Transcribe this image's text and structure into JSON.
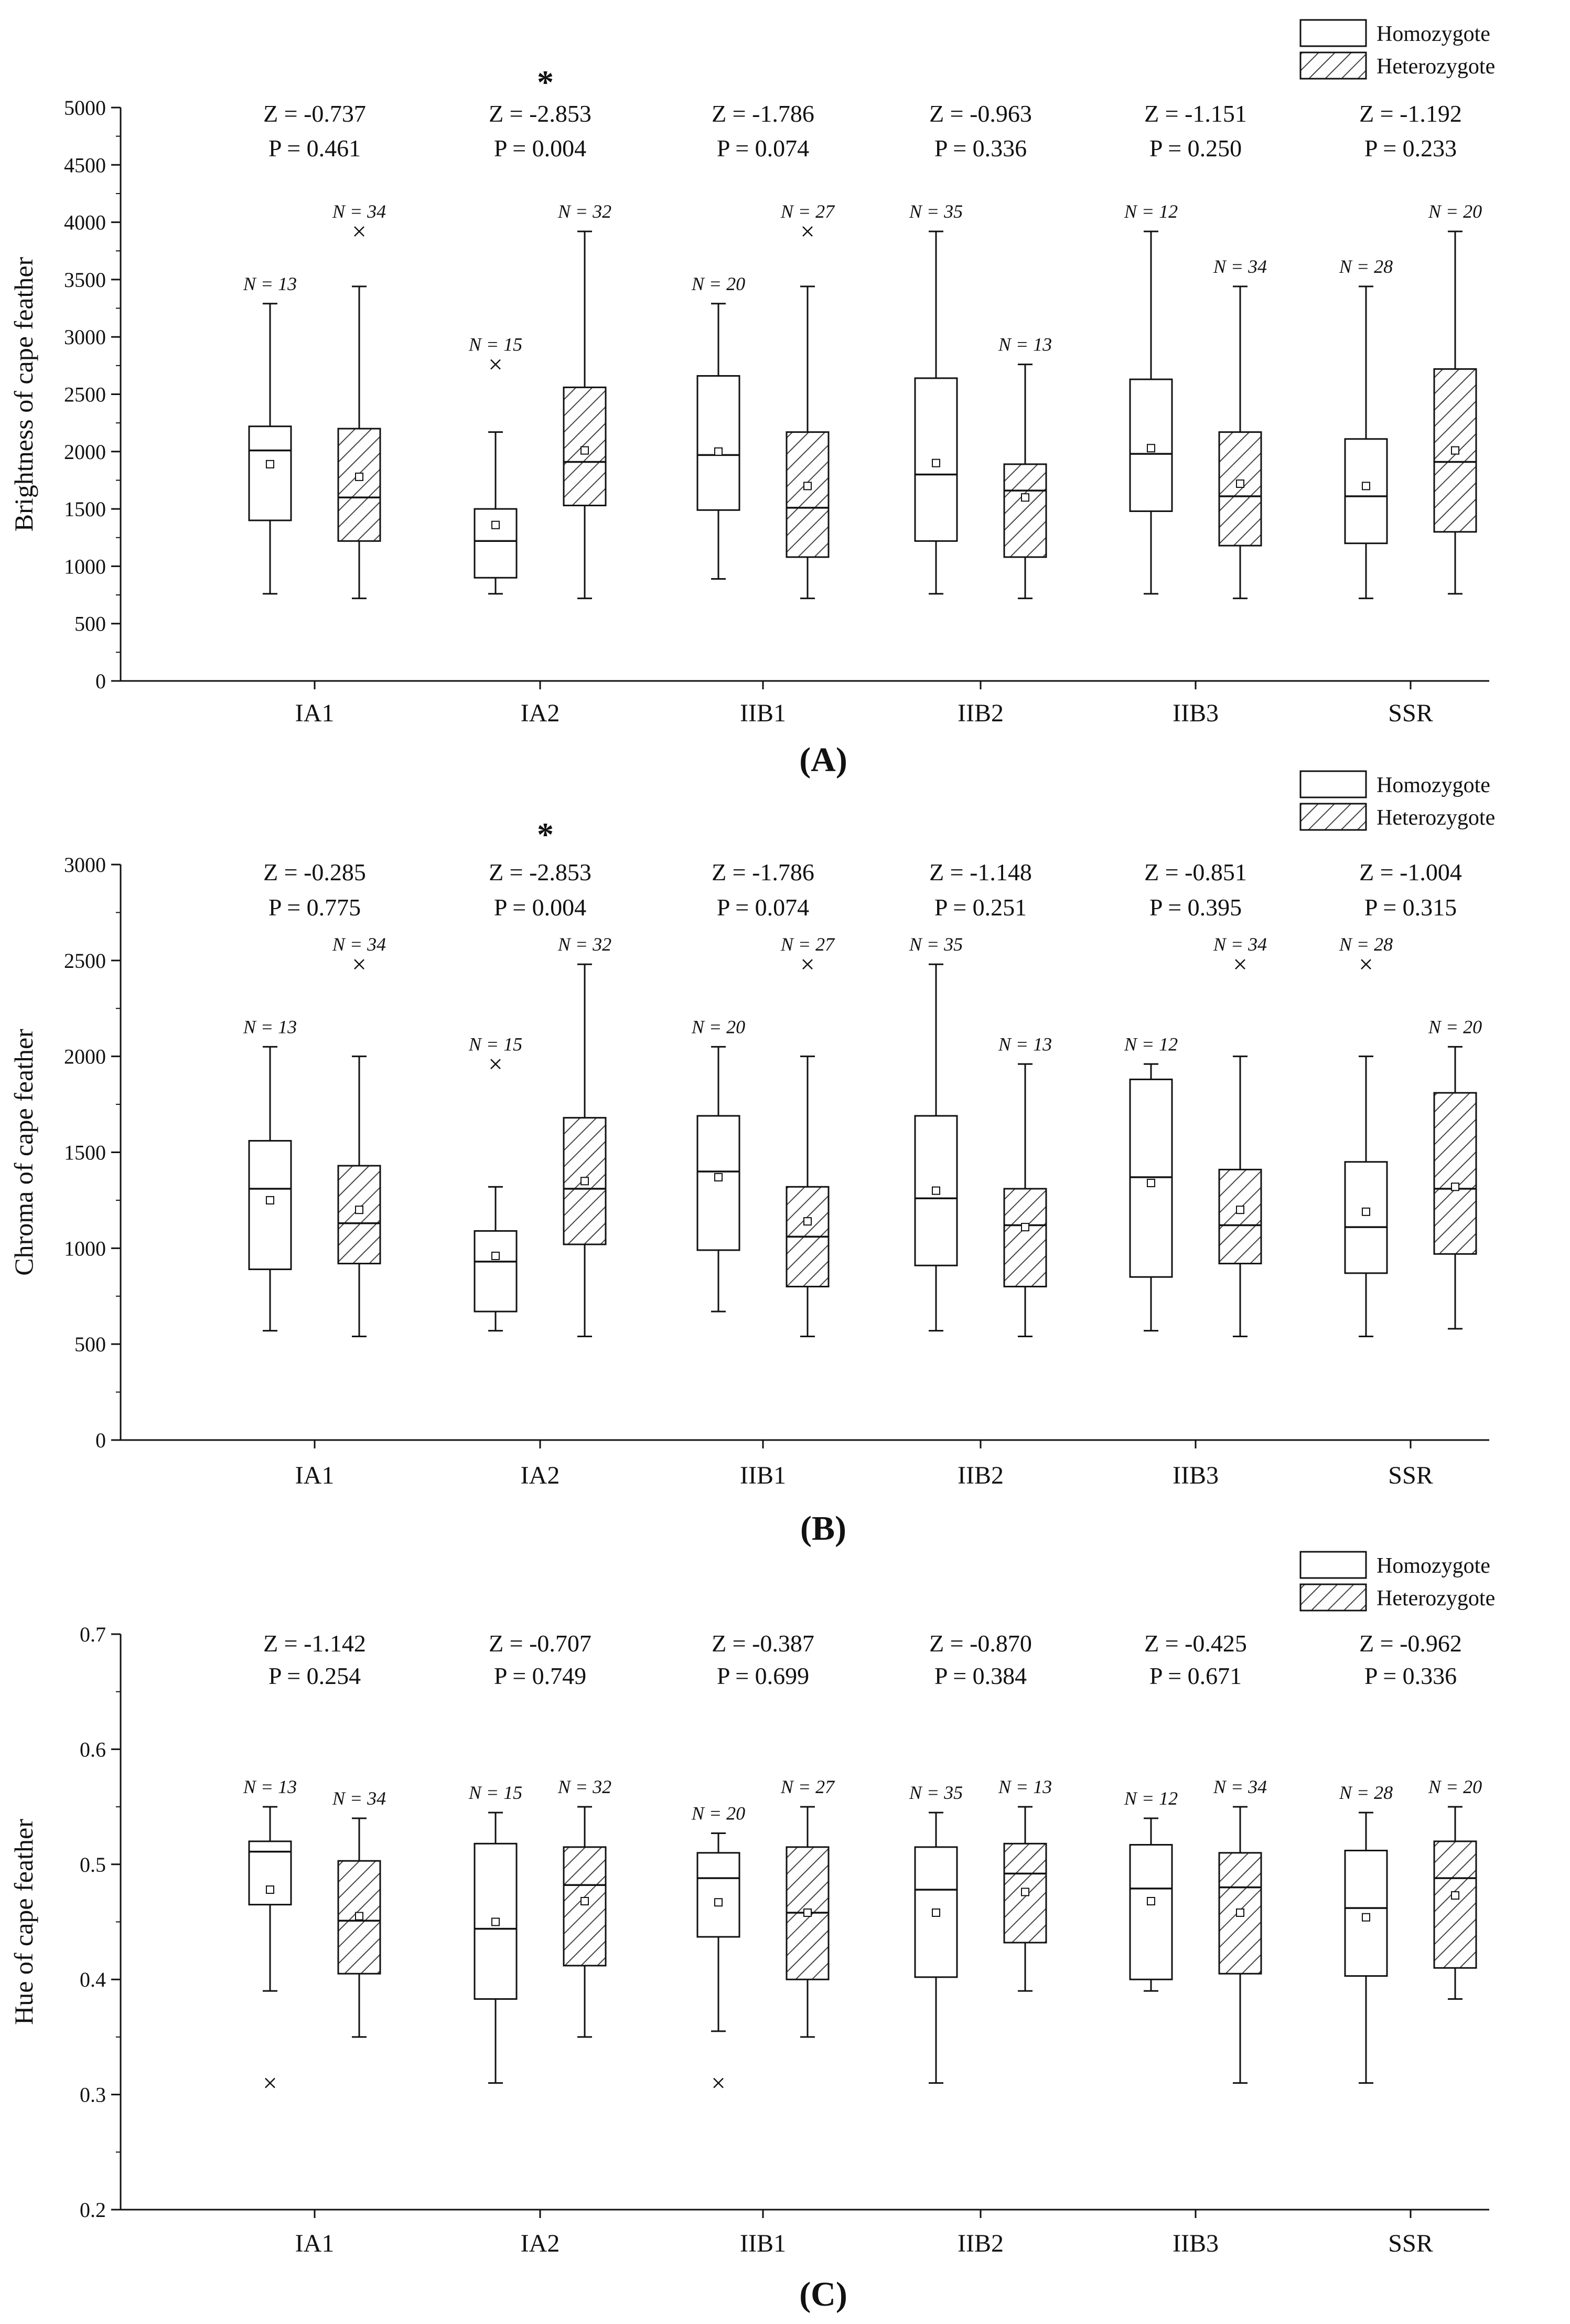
{
  "legend": {
    "homozygote": "Homozygote",
    "heterozygote": "Heterozygote"
  },
  "significance_marker": "*",
  "colors": {
    "ink": "#111111",
    "box_fill": "#ffffff",
    "hatch": "#444444"
  },
  "chart_data": [
    {
      "type": "box",
      "panel_label": "(A)",
      "ylabel": "Brightness of cape feather",
      "ylim": [
        0,
        5000
      ],
      "yticks": [
        "0",
        "500",
        "1000",
        "1500",
        "2000",
        "2500",
        "3000",
        "3500",
        "4000",
        "4500",
        "5000"
      ],
      "categories": [
        "IA1",
        "IA2",
        "IIB1",
        "IIB2",
        "IIB3",
        "SSR"
      ],
      "stats": [
        {
          "z": "Z = -0.737",
          "p": "P = 0.461",
          "significant": false
        },
        {
          "z": "Z = -2.853",
          "p": "P = 0.004",
          "significant": true
        },
        {
          "z": "Z = -1.786",
          "p": "P = 0.074",
          "significant": false
        },
        {
          "z": "Z = -0.963",
          "p": "P = 0.336",
          "significant": false
        },
        {
          "z": "Z = -1.151",
          "p": "P = 0.250",
          "significant": false
        },
        {
          "z": "Z = -1.192",
          "p": "P = 0.233",
          "significant": false
        }
      ],
      "series": [
        {
          "name": "Homozygote",
          "boxes": [
            {
              "n": "N = 13",
              "min": 760,
              "q1": 1400,
              "median": 2010,
              "q3": 2220,
              "max": 3290,
              "mean": 1890,
              "outliers": []
            },
            {
              "n": "N = 15",
              "min": 760,
              "q1": 900,
              "median": 1220,
              "q3": 1500,
              "max": 2170,
              "mean": 1360,
              "outliers": [
                2760
              ]
            },
            {
              "n": "N = 20",
              "min": 890,
              "q1": 1490,
              "median": 1970,
              "q3": 2660,
              "max": 3290,
              "mean": 2000,
              "outliers": []
            },
            {
              "n": "N = 35",
              "min": 760,
              "q1": 1220,
              "median": 1800,
              "q3": 2640,
              "max": 3920,
              "mean": 1900,
              "outliers": []
            },
            {
              "n": "N = 12",
              "min": 760,
              "q1": 1480,
              "median": 1980,
              "q3": 2630,
              "max": 3920,
              "mean": 2030,
              "outliers": []
            },
            {
              "n": "N = 28",
              "min": 720,
              "q1": 1200,
              "median": 1610,
              "q3": 2110,
              "max": 3440,
              "mean": 1700,
              "outliers": []
            }
          ]
        },
        {
          "name": "Heterozygote",
          "boxes": [
            {
              "n": "N = 34",
              "min": 720,
              "q1": 1220,
              "median": 1600,
              "q3": 2200,
              "max": 3440,
              "mean": 1780,
              "outliers": [
                3920
              ]
            },
            {
              "n": "N = 32",
              "min": 720,
              "q1": 1530,
              "median": 1910,
              "q3": 2560,
              "max": 3920,
              "mean": 2010,
              "outliers": []
            },
            {
              "n": "N = 27",
              "min": 720,
              "q1": 1080,
              "median": 1510,
              "q3": 2170,
              "max": 3440,
              "mean": 1700,
              "outliers": [
                3920
              ]
            },
            {
              "n": "N = 13",
              "min": 720,
              "q1": 1080,
              "median": 1660,
              "q3": 1890,
              "max": 2760,
              "mean": 1600,
              "outliers": []
            },
            {
              "n": "N = 34",
              "min": 720,
              "q1": 1180,
              "median": 1610,
              "q3": 2170,
              "max": 3440,
              "mean": 1720,
              "outliers": []
            },
            {
              "n": "N = 20",
              "min": 760,
              "q1": 1300,
              "median": 1910,
              "q3": 2720,
              "max": 3920,
              "mean": 2010,
              "outliers": []
            }
          ]
        }
      ]
    },
    {
      "type": "box",
      "panel_label": "(B)",
      "ylabel": "Chroma of cape feather",
      "ylim": [
        0,
        3000
      ],
      "yticks": [
        "0",
        "500",
        "1000",
        "1500",
        "2000",
        "2500",
        "3000"
      ],
      "categories": [
        "IA1",
        "IA2",
        "IIB1",
        "IIB2",
        "IIB3",
        "SSR"
      ],
      "stats": [
        {
          "z": "Z = -0.285",
          "p": "P = 0.775",
          "significant": false
        },
        {
          "z": "Z = -2.853",
          "p": "P = 0.004",
          "significant": true
        },
        {
          "z": "Z = -1.786",
          "p": "P = 0.074",
          "significant": false
        },
        {
          "z": "Z = -1.148",
          "p": "P = 0.251",
          "significant": false
        },
        {
          "z": "Z = -0.851",
          "p": "P = 0.395",
          "significant": false
        },
        {
          "z": "Z = -1.004",
          "p": "P = 0.315",
          "significant": false
        }
      ],
      "series": [
        {
          "name": "Homozygote",
          "boxes": [
            {
              "n": "N = 13",
              "min": 570,
              "q1": 890,
              "median": 1310,
              "q3": 1560,
              "max": 2050,
              "mean": 1250,
              "outliers": []
            },
            {
              "n": "N = 15",
              "min": 570,
              "q1": 670,
              "median": 930,
              "q3": 1090,
              "max": 1320,
              "mean": 960,
              "outliers": [
                1960
              ]
            },
            {
              "n": "N = 20",
              "min": 670,
              "q1": 990,
              "median": 1400,
              "q3": 1690,
              "max": 2050,
              "mean": 1370,
              "outliers": []
            },
            {
              "n": "N = 35",
              "min": 570,
              "q1": 910,
              "median": 1260,
              "q3": 1690,
              "max": 2480,
              "mean": 1300,
              "outliers": []
            },
            {
              "n": "N = 12",
              "min": 570,
              "q1": 850,
              "median": 1370,
              "q3": 1880,
              "max": 1960,
              "mean": 1340,
              "outliers": []
            },
            {
              "n": "N = 28",
              "min": 540,
              "q1": 870,
              "median": 1110,
              "q3": 1450,
              "max": 2000,
              "mean": 1190,
              "outliers": [
                2480
              ]
            }
          ]
        },
        {
          "name": "Heterozygote",
          "boxes": [
            {
              "n": "N = 34",
              "min": 540,
              "q1": 920,
              "median": 1130,
              "q3": 1430,
              "max": 2000,
              "mean": 1200,
              "outliers": [
                2480
              ]
            },
            {
              "n": "N = 32",
              "min": 540,
              "q1": 1020,
              "median": 1310,
              "q3": 1680,
              "max": 2480,
              "mean": 1350,
              "outliers": []
            },
            {
              "n": "N = 27",
              "min": 540,
              "q1": 800,
              "median": 1060,
              "q3": 1320,
              "max": 2000,
              "mean": 1140,
              "outliers": [
                2480
              ]
            },
            {
              "n": "N = 13",
              "min": 540,
              "q1": 800,
              "median": 1120,
              "q3": 1310,
              "max": 1960,
              "mean": 1110,
              "outliers": []
            },
            {
              "n": "N = 34",
              "min": 540,
              "q1": 920,
              "median": 1120,
              "q3": 1410,
              "max": 2000,
              "mean": 1200,
              "outliers": [
                2480
              ]
            },
            {
              "n": "N = 20",
              "min": 580,
              "q1": 970,
              "median": 1310,
              "q3": 1810,
              "max": 2050,
              "mean": 1320,
              "outliers": []
            }
          ]
        }
      ]
    },
    {
      "type": "box",
      "panel_label": "(C)",
      "ylabel": "Hue of cape feather",
      "ylim": [
        0.2,
        0.7
      ],
      "yticks": [
        "0.2",
        "0.3",
        "0.4",
        "0.5",
        "0.6",
        "0.7"
      ],
      "categories": [
        "IA1",
        "IA2",
        "IIB1",
        "IIB2",
        "IIB3",
        "SSR"
      ],
      "stats": [
        {
          "z": "Z = -1.142",
          "p": "P = 0.254",
          "significant": false
        },
        {
          "z": "Z = -0.707",
          "p": "P = 0.749",
          "significant": false
        },
        {
          "z": "Z = -0.387",
          "p": "P = 0.699",
          "significant": false
        },
        {
          "z": "Z = -0.870",
          "p": "P = 0.384",
          "significant": false
        },
        {
          "z": "Z = -0.425",
          "p": "P = 0.671",
          "significant": false
        },
        {
          "z": "Z = -0.962",
          "p": "P = 0.336",
          "significant": false
        }
      ],
      "series": [
        {
          "name": "Homozygote",
          "boxes": [
            {
              "n": "N = 13",
              "min": 0.39,
              "q1": 0.465,
              "median": 0.511,
              "q3": 0.52,
              "max": 0.55,
              "mean": 0.478,
              "outliers": [
                0.31
              ]
            },
            {
              "n": "N = 15",
              "min": 0.31,
              "q1": 0.383,
              "median": 0.444,
              "q3": 0.518,
              "max": 0.545,
              "mean": 0.45,
              "outliers": []
            },
            {
              "n": "N = 20",
              "min": 0.355,
              "q1": 0.437,
              "median": 0.488,
              "q3": 0.51,
              "max": 0.527,
              "mean": 0.467,
              "outliers": [
                0.31
              ]
            },
            {
              "n": "N = 35",
              "min": 0.31,
              "q1": 0.402,
              "median": 0.478,
              "q3": 0.515,
              "max": 0.545,
              "mean": 0.458,
              "outliers": []
            },
            {
              "n": "N = 12",
              "min": 0.39,
              "q1": 0.4,
              "median": 0.479,
              "q3": 0.517,
              "max": 0.54,
              "mean": 0.468,
              "outliers": []
            },
            {
              "n": "N = 28",
              "min": 0.31,
              "q1": 0.403,
              "median": 0.462,
              "q3": 0.512,
              "max": 0.545,
              "mean": 0.454,
              "outliers": []
            }
          ]
        },
        {
          "name": "Heterozygote",
          "boxes": [
            {
              "n": "N = 34",
              "min": 0.35,
              "q1": 0.405,
              "median": 0.451,
              "q3": 0.503,
              "max": 0.54,
              "mean": 0.455,
              "outliers": []
            },
            {
              "n": "N = 32",
              "min": 0.35,
              "q1": 0.412,
              "median": 0.482,
              "q3": 0.515,
              "max": 0.55,
              "mean": 0.468,
              "outliers": []
            },
            {
              "n": "N = 27",
              "min": 0.35,
              "q1": 0.4,
              "median": 0.458,
              "q3": 0.515,
              "max": 0.55,
              "mean": 0.458,
              "outliers": []
            },
            {
              "n": "N = 13",
              "min": 0.39,
              "q1": 0.432,
              "median": 0.492,
              "q3": 0.518,
              "max": 0.55,
              "mean": 0.476,
              "outliers": []
            },
            {
              "n": "N = 34",
              "min": 0.31,
              "q1": 0.405,
              "median": 0.48,
              "q3": 0.51,
              "max": 0.55,
              "mean": 0.458,
              "outliers": []
            },
            {
              "n": "N = 20",
              "min": 0.383,
              "q1": 0.41,
              "median": 0.488,
              "q3": 0.52,
              "max": 0.55,
              "mean": 0.473,
              "outliers": []
            }
          ]
        }
      ]
    }
  ]
}
